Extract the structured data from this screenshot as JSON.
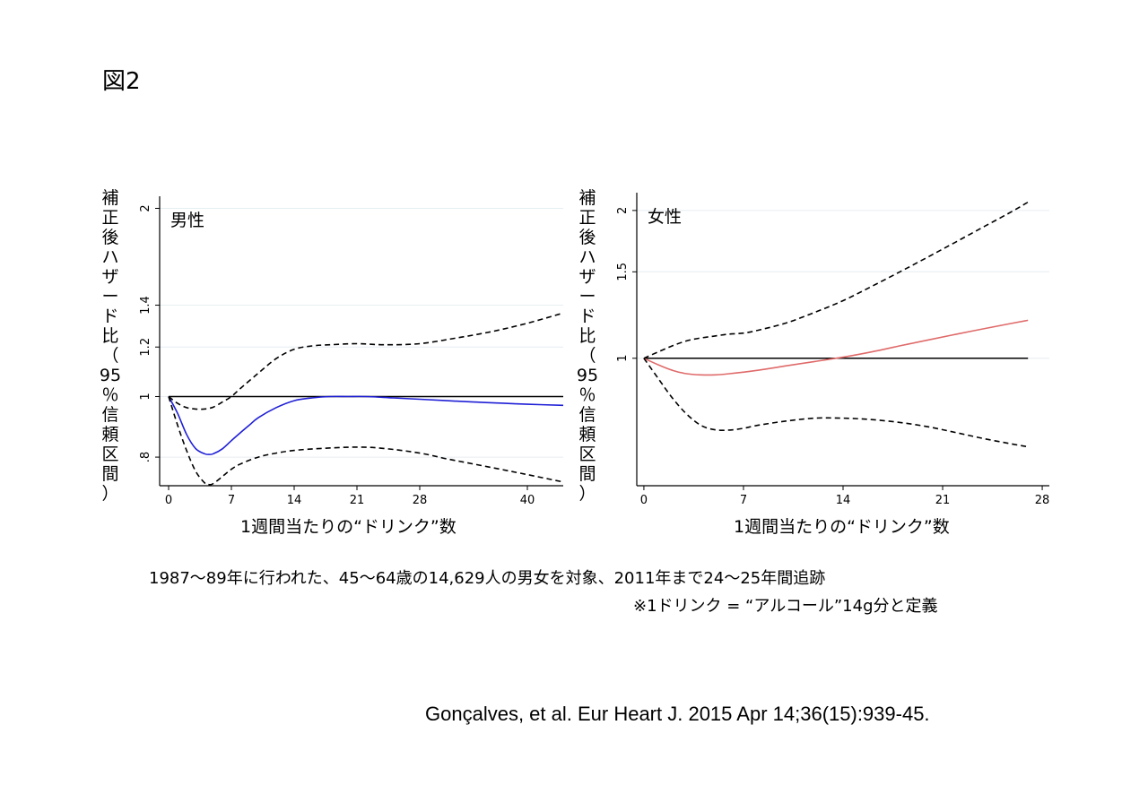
{
  "figure_title": "図2",
  "charts_meta": {
    "ylabel_chars": [
      "補",
      "正",
      "後",
      "ハ",
      "ザ",
      "ー",
      "ド",
      "比",
      "（",
      "95",
      "％",
      "信",
      "頼",
      "区",
      "間",
      "）"
    ]
  },
  "captions": {
    "line1": "1987〜89年に行われた、45〜64歳の14,629人の男女を対象、2011年まで24〜25年間追跡",
    "line2": "※1ドリンク = “アルコール”14g分と定義"
  },
  "citation": "Gonçalves, et al. Eur Heart J. 2015 Apr 14;36(15):939-45.",
  "colors": {
    "male_line": "#1f1fd6",
    "female_line": "#e06a6a",
    "ci": "#000000",
    "reference": "#000000",
    "grid": "#e6eef2"
  },
  "chart_data": [
    {
      "type": "line",
      "panel_label": "男性",
      "xlabel": "1週間当たりの“ドリンク”数",
      "ylabel": "補正後ハザード比（95％信頼区間）",
      "xlim": [
        -1,
        44
      ],
      "ylim": [
        0.72,
        2.05
      ],
      "y_scale": "log",
      "x_ticks": [
        0,
        7,
        14,
        21,
        28,
        40
      ],
      "y_ticks": [
        0.8,
        1,
        1.2,
        1.4,
        2
      ],
      "y_tick_labels": [
        ".8",
        "1",
        "1.2",
        "1.4",
        "2"
      ],
      "reference_line": 1,
      "series": [
        {
          "role": "estimate",
          "style": "solid",
          "x": [
            0,
            1,
            2,
            3,
            4,
            4.5,
            5,
            6,
            7,
            8,
            9,
            10,
            12,
            14,
            16,
            18,
            20,
            22,
            25,
            28,
            31,
            34,
            37,
            40,
            44
          ],
          "y": [
            1.0,
            0.94,
            0.87,
            0.826,
            0.81,
            0.808,
            0.81,
            0.825,
            0.85,
            0.875,
            0.9,
            0.925,
            0.96,
            0.985,
            0.995,
            1.0,
            1.0,
            1.0,
            0.995,
            0.99,
            0.985,
            0.98,
            0.976,
            0.972,
            0.968
          ]
        },
        {
          "role": "upper-ci",
          "style": "dashed",
          "x": [
            0,
            1,
            2,
            3,
            4,
            5,
            6,
            7,
            8,
            10,
            12,
            14,
            16,
            18,
            21,
            24,
            28,
            32,
            36,
            40,
            44
          ],
          "y": [
            1.0,
            0.975,
            0.96,
            0.955,
            0.955,
            0.962,
            0.98,
            1.0,
            1.03,
            1.09,
            1.15,
            1.19,
            1.205,
            1.21,
            1.215,
            1.21,
            1.215,
            1.24,
            1.27,
            1.31,
            1.36
          ]
        },
        {
          "role": "lower-ci",
          "style": "dashed",
          "x": [
            0,
            1,
            2,
            3,
            4,
            4.5,
            5,
            6,
            7,
            8,
            10,
            12,
            14,
            17,
            21,
            24,
            28,
            31,
            34,
            37,
            40,
            44
          ],
          "y": [
            1.0,
            0.9,
            0.82,
            0.76,
            0.728,
            0.723,
            0.726,
            0.745,
            0.765,
            0.78,
            0.8,
            0.812,
            0.82,
            0.826,
            0.83,
            0.826,
            0.812,
            0.795,
            0.78,
            0.765,
            0.75,
            0.73
          ]
        }
      ]
    },
    {
      "type": "line",
      "panel_label": "女性",
      "xlabel": "1週間当たりの“ドリンク”数",
      "ylabel": "補正後ハザード比（95％信頼区間）",
      "xlim": [
        -0.5,
        28.5
      ],
      "ylim": [
        0.55,
        2.12
      ],
      "y_scale": "log",
      "x_ticks": [
        0,
        7,
        14,
        21,
        28
      ],
      "y_ticks": [
        1,
        1.5,
        2
      ],
      "y_tick_labels": [
        "1",
        "1.5",
        "2"
      ],
      "reference_line": 1,
      "series": [
        {
          "role": "estimate",
          "style": "solid",
          "x": [
            0,
            1,
            2,
            3,
            4,
            5,
            6,
            8,
            10,
            12,
            14,
            16,
            18,
            20,
            22,
            24,
            26,
            27
          ],
          "y": [
            1.0,
            0.97,
            0.945,
            0.93,
            0.925,
            0.925,
            0.93,
            0.945,
            0.965,
            0.985,
            1.005,
            1.03,
            1.06,
            1.09,
            1.12,
            1.15,
            1.18,
            1.195
          ]
        },
        {
          "role": "upper-ci",
          "style": "dashed",
          "x": [
            0,
            1,
            2,
            3,
            4,
            5,
            6,
            7,
            8,
            10,
            12,
            14,
            16,
            18,
            20,
            22,
            24,
            26,
            27
          ],
          "y": [
            1.0,
            1.03,
            1.06,
            1.085,
            1.1,
            1.11,
            1.12,
            1.125,
            1.14,
            1.18,
            1.24,
            1.31,
            1.4,
            1.5,
            1.61,
            1.73,
            1.86,
            2.0,
            2.08
          ]
        },
        {
          "role": "lower-ci",
          "style": "dashed",
          "x": [
            0,
            1,
            2,
            3,
            4,
            5,
            6,
            7,
            8,
            10,
            12,
            14,
            16,
            18,
            20,
            22,
            24,
            26,
            27
          ],
          "y": [
            1.0,
            0.91,
            0.83,
            0.77,
            0.73,
            0.715,
            0.714,
            0.72,
            0.73,
            0.745,
            0.755,
            0.755,
            0.75,
            0.74,
            0.725,
            0.705,
            0.685,
            0.668,
            0.66
          ]
        }
      ]
    }
  ]
}
